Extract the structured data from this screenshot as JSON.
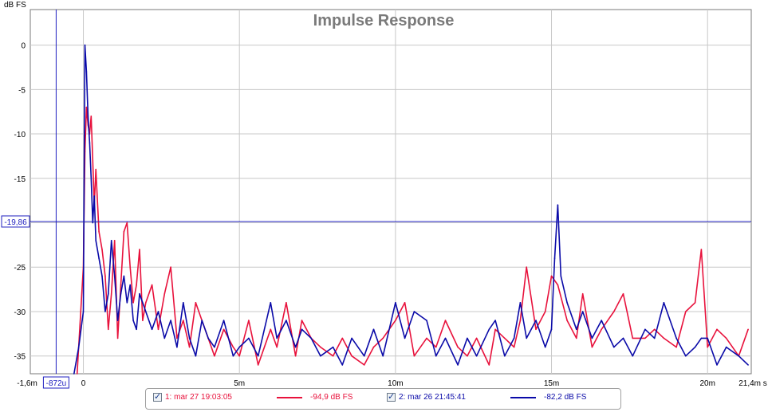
{
  "chart_data": {
    "type": "line",
    "title": "Impulse Response",
    "ylabel": "dB FS",
    "xunit": "s",
    "xlim": [
      -0.0017,
      0.0214
    ],
    "ylim": [
      -37,
      4
    ],
    "x_ticks": [
      {
        "value": 0,
        "label": "0"
      },
      {
        "value": 0.005,
        "label": "5m"
      },
      {
        "value": 0.01,
        "label": "10m"
      },
      {
        "value": 0.015,
        "label": "15m"
      },
      {
        "value": 0.02,
        "label": "20m"
      }
    ],
    "x_edge_labels": {
      "left": "-1,6m",
      "right": "21,4m s"
    },
    "y_ticks": [
      0,
      -5,
      -10,
      -15,
      -20,
      -25,
      -30,
      -35
    ],
    "grid": true,
    "cursor": {
      "x": -0.000872,
      "x_label": "-872u",
      "y": -19.86,
      "y_label": "-19,86"
    },
    "colors": {
      "series1": "#e8123c",
      "series2": "#0a0aa8",
      "cursor": "#2020c0",
      "grid": "#c8c8c8",
      "title": "#7a7a7a"
    },
    "series": [
      {
        "name": "1: mar 27 19:03:05",
        "value_label": "-94,9 dB FS",
        "x": [
          -0.0002,
          0,
          5e-05,
          0.0001,
          0.00015,
          0.0002,
          0.00025,
          0.0003,
          0.00035,
          0.0004,
          0.0005,
          0.0006,
          0.0007,
          0.0008,
          0.0009,
          0.001,
          0.0011,
          0.0012,
          0.0013,
          0.0014,
          0.0015,
          0.0016,
          0.0017,
          0.0018,
          0.0019,
          0.002,
          0.0022,
          0.0024,
          0.0026,
          0.0028,
          0.003,
          0.0032,
          0.0034,
          0.0036,
          0.0038,
          0.004,
          0.0042,
          0.0045,
          0.0048,
          0.005,
          0.0053,
          0.0056,
          0.006,
          0.0062,
          0.0065,
          0.0068,
          0.007,
          0.0073,
          0.0076,
          0.008,
          0.0083,
          0.0086,
          0.009,
          0.0093,
          0.0096,
          0.01,
          0.0103,
          0.0106,
          0.011,
          0.0113,
          0.0116,
          0.012,
          0.0123,
          0.0126,
          0.013,
          0.0132,
          0.0135,
          0.0138,
          0.014,
          0.0142,
          0.0145,
          0.0148,
          0.015,
          0.0152,
          0.0155,
          0.0158,
          0.016,
          0.0163,
          0.0166,
          0.017,
          0.0173,
          0.0176,
          0.018,
          0.0183,
          0.0186,
          0.019,
          0.0193,
          0.0196,
          0.0198,
          0.02,
          0.0203,
          0.0206,
          0.021,
          0.0213
        ],
        "values": [
          -37,
          -25,
          -12,
          -7,
          -9,
          -10,
          -8,
          -13,
          -18,
          -14,
          -21,
          -23,
          -26,
          -32,
          -28,
          -22,
          -33,
          -27,
          -21,
          -20,
          -25,
          -29,
          -27,
          -23,
          -31,
          -29,
          -27,
          -32,
          -28,
          -25,
          -33,
          -31,
          -34,
          -29,
          -31,
          -33,
          -35,
          -32,
          -34,
          -35,
          -31,
          -36,
          -32,
          -34,
          -29,
          -35,
          -31,
          -33,
          -34,
          -35,
          -33,
          -35,
          -36,
          -34,
          -33,
          -31,
          -29,
          -35,
          -33,
          -34,
          -31,
          -34,
          -35,
          -33,
          -36,
          -32,
          -33,
          -34,
          -31,
          -25,
          -32,
          -30,
          -26,
          -27,
          -31,
          -33,
          -28,
          -34,
          -32,
          -30,
          -28,
          -33,
          -33,
          -32,
          -33,
          -34,
          -30,
          -29,
          -23,
          -34,
          -32,
          -33,
          -35,
          -32
        ]
      },
      {
        "name": "2: mar 26 21:45:41",
        "value_label": "-82,2 dB FS",
        "x": [
          -0.0003,
          -0.00015,
          0,
          5e-05,
          0.0001,
          0.00015,
          0.0002,
          0.00025,
          0.0003,
          0.00035,
          0.0004,
          0.0005,
          0.0006,
          0.0007,
          0.0008,
          0.0009,
          0.001,
          0.0011,
          0.0012,
          0.0013,
          0.0014,
          0.0015,
          0.0016,
          0.0017,
          0.0018,
          0.002,
          0.0022,
          0.0024,
          0.0026,
          0.0028,
          0.003,
          0.0032,
          0.0034,
          0.0036,
          0.0038,
          0.004,
          0.0042,
          0.0045,
          0.0048,
          0.005,
          0.0053,
          0.0056,
          0.006,
          0.0062,
          0.0065,
          0.0068,
          0.007,
          0.0073,
          0.0076,
          0.008,
          0.0083,
          0.0086,
          0.009,
          0.0093,
          0.0096,
          0.01,
          0.0103,
          0.0106,
          0.011,
          0.0113,
          0.0116,
          0.012,
          0.0123,
          0.0126,
          0.013,
          0.0132,
          0.0135,
          0.0138,
          0.014,
          0.0142,
          0.0145,
          0.0148,
          0.015,
          0.0151,
          0.0152,
          0.0153,
          0.0155,
          0.0158,
          0.016,
          0.0163,
          0.0166,
          0.017,
          0.0173,
          0.0176,
          0.018,
          0.0183,
          0.0186,
          0.019,
          0.0193,
          0.0196,
          0.0198,
          0.02,
          0.0203,
          0.0206,
          0.021,
          0.0213
        ],
        "values": [
          -37,
          -34,
          -30,
          0,
          -3,
          -8,
          -11,
          -15,
          -20,
          -17,
          -22,
          -24,
          -26,
          -30,
          -28,
          -22,
          -26,
          -31,
          -28,
          -26,
          -29,
          -27,
          -31,
          -32,
          -28,
          -30,
          -32,
          -30,
          -33,
          -31,
          -34,
          -29,
          -33,
          -35,
          -31,
          -33,
          -34,
          -31,
          -35,
          -34,
          -33,
          -35,
          -29,
          -33,
          -31,
          -34,
          -32,
          -33,
          -35,
          -34,
          -36,
          -33,
          -35,
          -32,
          -35,
          -29,
          -33,
          -30,
          -31,
          -35,
          -33,
          -36,
          -33,
          -35,
          -32,
          -31,
          -35,
          -33,
          -29,
          -33,
          -31,
          -34,
          -32,
          -24,
          -18,
          -26,
          -29,
          -32,
          -30,
          -33,
          -31,
          -34,
          -33,
          -35,
          -32,
          -33,
          -29,
          -33,
          -35,
          -34,
          -33,
          -33,
          -36,
          -34,
          -35,
          -36
        ]
      }
    ]
  }
}
